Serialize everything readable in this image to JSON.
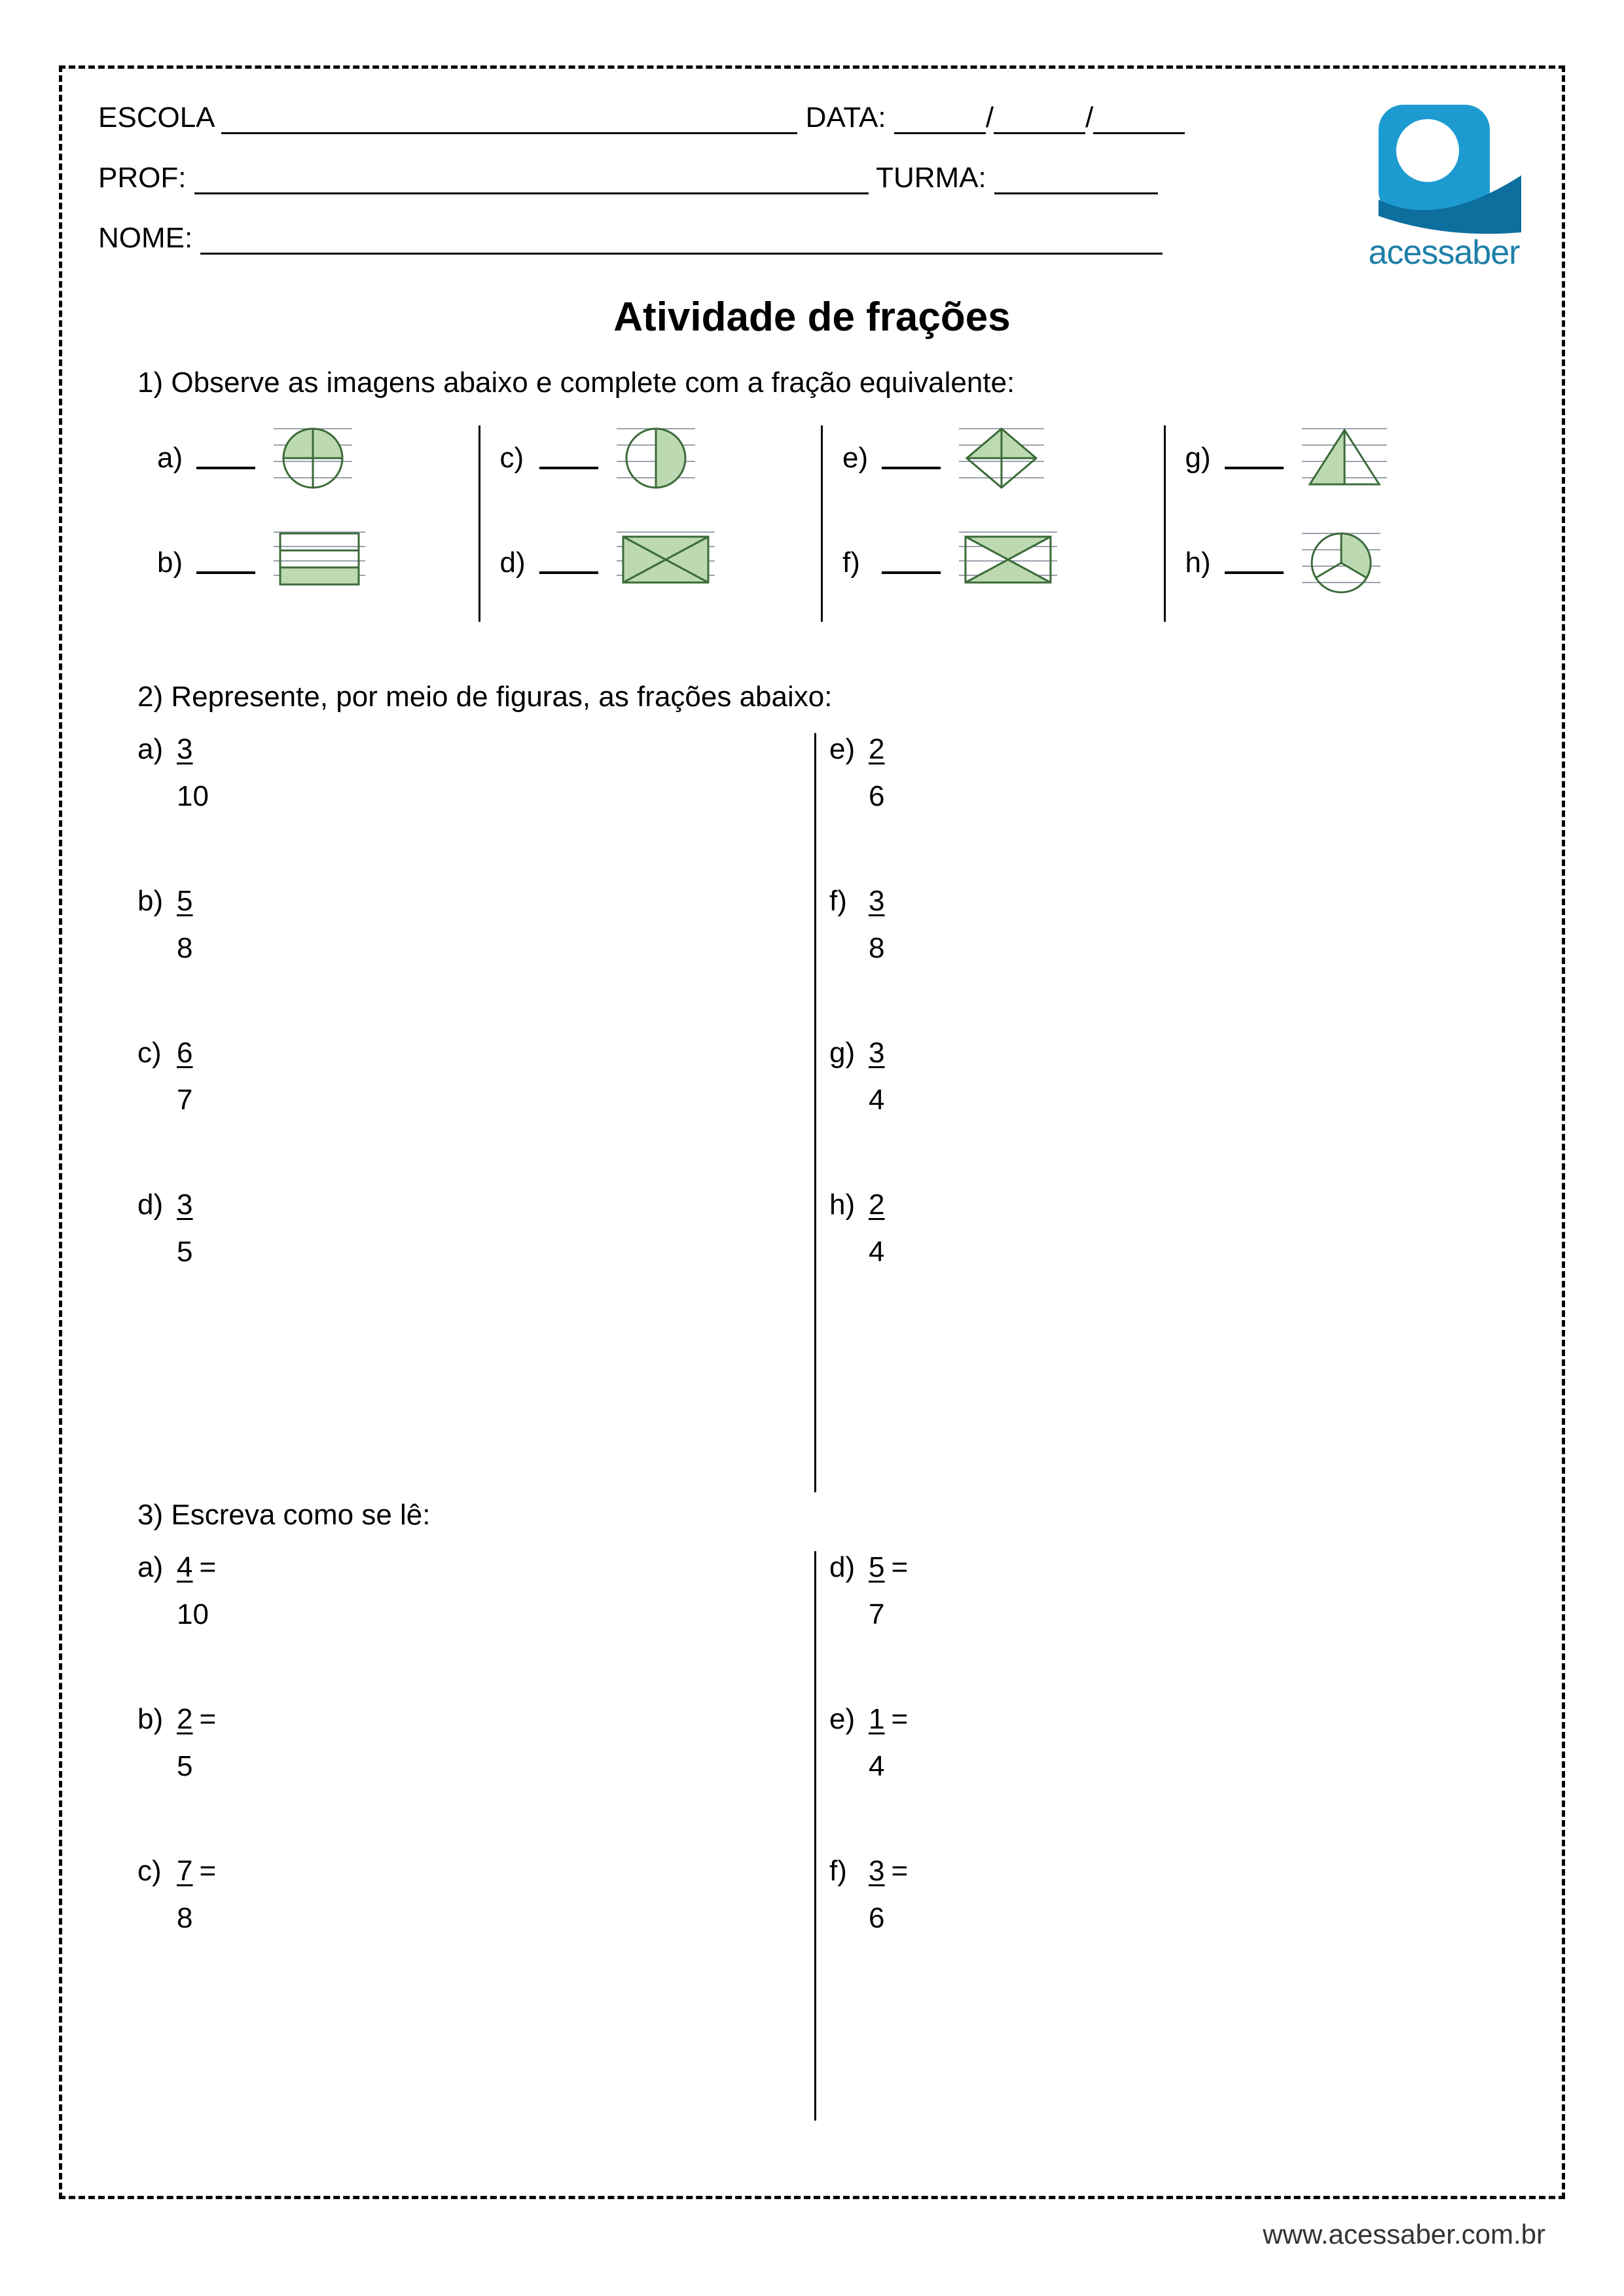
{
  "colors": {
    "fill_green": "#bcd9b2",
    "stroke": "#3b6b3a",
    "logo_blue": "#1d9bd1",
    "logo_dark": "#0d6f9e",
    "logo_text": "#1d7fa8",
    "gray_line": "#9ca3af"
  },
  "header": {
    "escola": "ESCOLA",
    "data": "DATA:",
    "prof": "PROF:",
    "turma": "TURMA:",
    "nome": "NOME:"
  },
  "logo_text": "acessaber",
  "title": "Atividade de frações",
  "q1": {
    "prompt": "1) Observe as imagens abaixo e complete com a fração equivalente:",
    "items": [
      {
        "label": "a)",
        "shape": "circle_q2"
      },
      {
        "label": "b)",
        "shape": "rect_third"
      },
      {
        "label": "c)",
        "shape": "circle_half"
      },
      {
        "label": "d)",
        "shape": "rect_x_full"
      },
      {
        "label": "e)",
        "shape": "diamond_top"
      },
      {
        "label": "f)",
        "shape": "rect_x_two"
      },
      {
        "label": "g)",
        "shape": "triangle_half"
      },
      {
        "label": "h)",
        "shape": "circle_third"
      }
    ]
  },
  "q2": {
    "prompt": "2) Represente, por meio de figuras, as frações abaixo:",
    "left": [
      {
        "label": "a)",
        "num": "3",
        "den": "10"
      },
      {
        "label": "b)",
        "num": "5",
        "den": "8"
      },
      {
        "label": "c)",
        "num": "6",
        "den": "7"
      },
      {
        "label": "d)",
        "num": "3",
        "den": "5"
      }
    ],
    "right": [
      {
        "label": "e)",
        "num": "2",
        "den": "6"
      },
      {
        "label": "f)",
        "num": "3",
        "den": "8"
      },
      {
        "label": "g)",
        "num": "3",
        "den": "4"
      },
      {
        "label": "h)",
        "num": "2",
        "den": "4"
      }
    ]
  },
  "q3": {
    "prompt": "3) Escreva como se lê:",
    "left": [
      {
        "label": "a)",
        "num": "4",
        "den": "10"
      },
      {
        "label": "b)",
        "num": "2",
        "den": "5"
      },
      {
        "label": "c)",
        "num": "7",
        "den": "8"
      }
    ],
    "right": [
      {
        "label": "d)",
        "num": "5",
        "den": "7"
      },
      {
        "label": "e)",
        "num": "1",
        "den": "4"
      },
      {
        "label": "f)",
        "num": "3",
        "den": "6"
      }
    ]
  },
  "footer_url": "www.acessaber.com.br"
}
